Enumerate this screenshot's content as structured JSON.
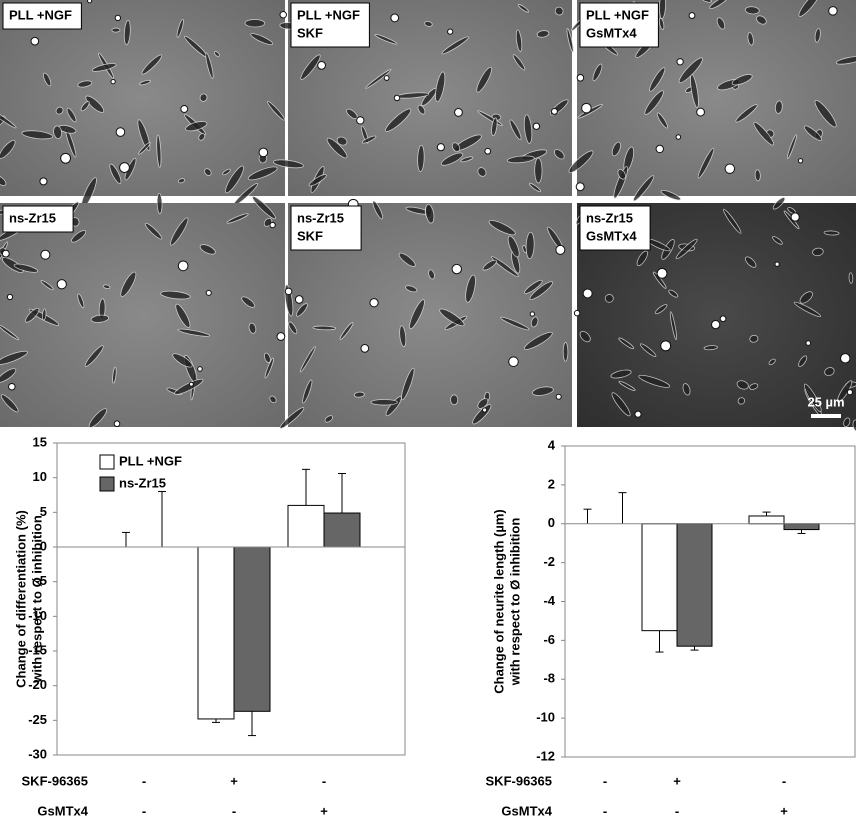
{
  "panels": [
    {
      "label": [
        "PLL +NGF"
      ]
    },
    {
      "label": [
        "PLL +NGF",
        "SKF"
      ]
    },
    {
      "label": [
        "PLL +NGF",
        "GsMTx4"
      ]
    },
    {
      "label": [
        "ns-Zr15"
      ]
    },
    {
      "label": [
        "ns-Zr15",
        "SKF"
      ]
    },
    {
      "label": [
        "ns-Zr15",
        "GsMTx4"
      ]
    }
  ],
  "scale_bar": "25 µm",
  "chart_data": [
    {
      "type": "bar",
      "y_label": [
        "Change of differentiation (%)",
        "with respect to Ø inhibition"
      ],
      "categories": [
        null,
        null,
        null
      ],
      "series": [
        {
          "name": "PLL +NGF",
          "color": "#ffffff",
          "values": [
            0,
            -24.8,
            6
          ],
          "errors": [
            2.1,
            0.5,
            5.2
          ]
        },
        {
          "name": "ns-Zr15",
          "color": "#666666",
          "values": [
            0,
            -23.7,
            4.9
          ],
          "errors": [
            8,
            3.5,
            5.7
          ]
        }
      ],
      "ylim": [
        -30,
        15
      ],
      "yticks": [
        -30,
        -25,
        -20,
        -15,
        -10,
        -5,
        0,
        5,
        10,
        15
      ],
      "legend": "top-left",
      "conditions": [
        {
          "label": "SKF-96365",
          "values": [
            "-",
            "+",
            "-"
          ]
        },
        {
          "label": "GsMTx4",
          "values": [
            "-",
            "-",
            "+"
          ]
        }
      ]
    },
    {
      "type": "bar",
      "y_label": [
        "Change of neurite length (µm)",
        "with respect to Ø inhibition"
      ],
      "categories": [
        null,
        null,
        null
      ],
      "series": [
        {
          "name": "PLL +NGF",
          "color": "#ffffff",
          "values": [
            0,
            -5.5,
            0.4
          ],
          "errors": [
            0.75,
            1.1,
            0.2
          ]
        },
        {
          "name": "ns-Zr15",
          "color": "#666666",
          "values": [
            0,
            -6.3,
            -0.3
          ],
          "errors": [
            1.6,
            0.2,
            0.2
          ]
        }
      ],
      "ylim": [
        -12,
        4
      ],
      "yticks": [
        -12,
        -10,
        -8,
        -6,
        -4,
        -2,
        0,
        2,
        4
      ],
      "conditions": [
        {
          "label": "SKF-96365",
          "values": [
            "-",
            "+",
            "-"
          ]
        },
        {
          "label": "GsMTx4",
          "values": [
            "-",
            "-",
            "+"
          ]
        }
      ]
    }
  ]
}
